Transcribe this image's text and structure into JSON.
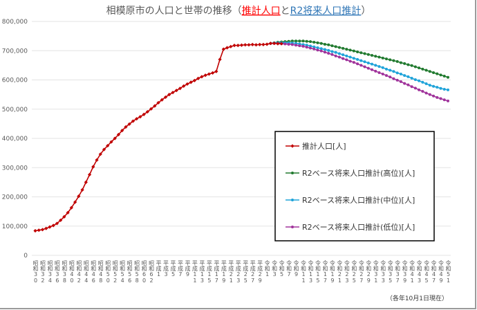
{
  "chart_data": {
    "type": "line",
    "title_parts": {
      "prefix": "相模原市の人口と世帯の推移（",
      "highlight1": "推計人口",
      "middle": "と",
      "highlight2": "R2将来人口推計",
      "suffix": "）"
    },
    "title_colors": {
      "highlight1": "#ff0000",
      "highlight2": "#2e75b6"
    },
    "note": "（各年10月1日現在）",
    "ylim": [
      0,
      800000
    ],
    "yticks": [
      "0",
      "100,000",
      "200,000",
      "300,000",
      "400,000",
      "500,000",
      "600,000",
      "700,000",
      "800,000"
    ],
    "grid": true,
    "legend_placement": "bottom-right inside",
    "x_start_year": 1955,
    "x_end_year": 2069,
    "xtick_labels": [
      "昭和30",
      "昭和32",
      "昭和34",
      "昭和36",
      "昭和38",
      "昭和40",
      "昭和42",
      "昭和44",
      "昭和46",
      "昭和48",
      "昭和50",
      "昭和52",
      "昭和54",
      "昭和56",
      "昭和58",
      "昭和60",
      "昭和62",
      "平成1",
      "平成3",
      "平成5",
      "平成7",
      "平成9",
      "平成11",
      "平成13",
      "平成15",
      "平成17",
      "平成19",
      "平成21",
      "平成23",
      "平成25",
      "平成27",
      "平成29",
      "令和1",
      "令和3",
      "令和5",
      "令和7",
      "令和9",
      "令和11",
      "令和13",
      "令和15",
      "令和17",
      "令和19",
      "令和21",
      "令和23",
      "令和25",
      "令和27",
      "令和29",
      "令和31",
      "令和33",
      "令和35",
      "令和37",
      "令和39",
      "令和41",
      "令和43",
      "令和45",
      "令和47",
      "令和49",
      "令和51"
    ],
    "series": [
      {
        "name": "推計人口[人]",
        "color": "#c00000",
        "marker": "diamond",
        "start_year": 1955,
        "values": [
          84000,
          86000,
          88000,
          92000,
          97000,
          102000,
          109000,
          120000,
          132000,
          146000,
          163000,
          182000,
          202000,
          224000,
          250000,
          276000,
          303000,
          326000,
          346000,
          362000,
          375000,
          388000,
          400000,
          413000,
          427000,
          439000,
          449000,
          459000,
          467000,
          474000,
          482000,
          491000,
          501000,
          511000,
          522000,
          532000,
          541000,
          550000,
          557000,
          564000,
          571000,
          579000,
          586000,
          592000,
          598000,
          605000,
          611000,
          616000,
          620000,
          624000,
          629000,
          670000,
          705000,
          710000,
          714000,
          718000,
          718000,
          719000,
          720000,
          720000,
          721000,
          720000,
          721000,
          721000,
          722000,
          725000,
          725000,
          724000,
          724000
        ]
      },
      {
        "name": "R2ベース将来人口推計(高位)[人]",
        "color": "#217a2f",
        "marker": "circle",
        "start_year": 2020,
        "values": [
          725000,
          727000,
          729000,
          730000,
          731000,
          732000,
          733000,
          733000,
          733000,
          733000,
          732000,
          731000,
          729000,
          727000,
          725000,
          722000,
          720000,
          717000,
          714000,
          711000,
          708000,
          705000,
          702000,
          699000,
          696000,
          693000,
          690000,
          687000,
          684000,
          681000,
          678000,
          675000,
          672000,
          669000,
          666000,
          663000,
          659000,
          656000,
          652000,
          649000,
          645000,
          641000,
          637000,
          633000,
          629000,
          625000,
          621000,
          617000,
          613000,
          609000
        ]
      },
      {
        "name": "R2ベース将来人口推計(中位)[人]",
        "color": "#1fa3d9",
        "marker": "circle",
        "start_year": 2020,
        "values": [
          725000,
          726000,
          727000,
          727000,
          727000,
          727000,
          726000,
          725000,
          723000,
          721000,
          719000,
          716000,
          713000,
          710000,
          707000,
          704000,
          701000,
          697000,
          694000,
          690000,
          686000,
          682000,
          678000,
          674000,
          670000,
          666000,
          662000,
          658000,
          654000,
          650000,
          646000,
          642000,
          637000,
          633000,
          629000,
          624000,
          620000,
          615000,
          611000,
          606000,
          601000,
          597000,
          592000,
          587000,
          582000,
          578000,
          575000,
          571000,
          568000,
          566000
        ]
      },
      {
        "name": "R2ベース将来人口推計(低位)[人]",
        "color": "#a0339b",
        "marker": "circle",
        "start_year": 2020,
        "values": [
          725000,
          725000,
          725000,
          724000,
          723000,
          722000,
          721000,
          719000,
          717000,
          715000,
          712000,
          709000,
          706000,
          702000,
          699000,
          695000,
          691000,
          687000,
          682000,
          678000,
          673000,
          669000,
          664000,
          660000,
          655000,
          650000,
          645000,
          640000,
          635000,
          630000,
          625000,
          620000,
          615000,
          610000,
          604000,
          599000,
          594000,
          588000,
          583000,
          577000,
          572000,
          566000,
          561000,
          555000,
          550000,
          545000,
          540000,
          536000,
          532000,
          528000
        ]
      }
    ]
  }
}
